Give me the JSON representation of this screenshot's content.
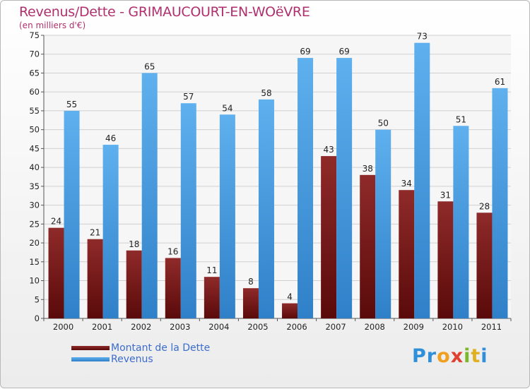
{
  "chart_data": {
    "type": "bar",
    "title": "Revenus/Dette - GRIMAUCOURT-EN-WOëVRE",
    "subtitle": "(en milliers d'€)",
    "categories": [
      "2000",
      "2001",
      "2002",
      "2003",
      "2004",
      "2005",
      "2006",
      "2007",
      "2008",
      "2009",
      "2010",
      "2011"
    ],
    "series": [
      {
        "name": "Montant de la Dette",
        "color": "#7a1c1c",
        "values": [
          24,
          21,
          18,
          16,
          11,
          8,
          4,
          43,
          38,
          34,
          31,
          28
        ]
      },
      {
        "name": "Revenus",
        "color": "#4a9be0",
        "values": [
          55,
          46,
          65,
          57,
          54,
          58,
          69,
          69,
          50,
          73,
          51,
          61
        ]
      }
    ],
    "ylim": [
      0,
      75
    ],
    "yticks": [
      0,
      5,
      10,
      15,
      20,
      25,
      30,
      35,
      40,
      45,
      50,
      55,
      60,
      65,
      70,
      75
    ],
    "grid": true,
    "legend": "bottom-left",
    "xlabel": "",
    "ylabel": ""
  },
  "brand": {
    "name": "Proxiti",
    "letters": [
      "P",
      "r",
      "o",
      "x",
      "i",
      "t",
      "i"
    ],
    "colors": [
      "#2f8fd8",
      "#2f8fd8",
      "#f0a020",
      "#e04030",
      "#7ab82a",
      "#e0b020",
      "#2f8fd8"
    ]
  }
}
